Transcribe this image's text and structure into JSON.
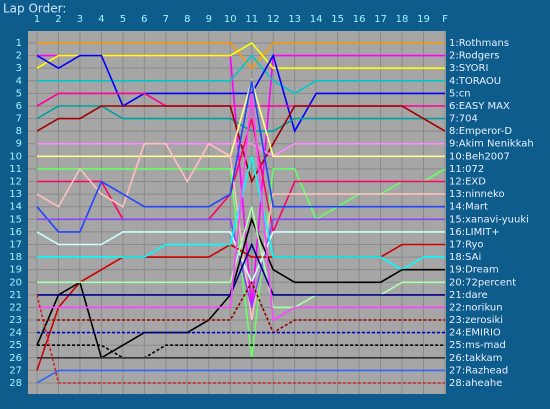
{
  "chart_data": {
    "type": "line",
    "title": "Lap Order:",
    "categories": [
      "1",
      "2",
      "3",
      "4",
      "5",
      "6",
      "7",
      "8",
      "9",
      "10",
      "11",
      "12",
      "13",
      "14",
      "15",
      "16",
      "17",
      "18",
      "19",
      "F"
    ],
    "ylim": [
      28,
      1
    ],
    "yticks": [
      1,
      2,
      3,
      4,
      5,
      6,
      7,
      8,
      9,
      10,
      11,
      12,
      13,
      14,
      15,
      16,
      17,
      18,
      19,
      20,
      21,
      22,
      23,
      24,
      25,
      26,
      27,
      28
    ],
    "grid": true,
    "series": [
      {
        "name": "1:Rothmans",
        "color": "#ff9900",
        "values": [
          1,
          1,
          1,
          1,
          1,
          1,
          1,
          1,
          1,
          1,
          3,
          1,
          1,
          1,
          1,
          1,
          1,
          1,
          1,
          1
        ]
      },
      {
        "name": "2:Rodgers",
        "color": "#ff00ff",
        "values": [
          2,
          2,
          2,
          2,
          2,
          2,
          2,
          2,
          2,
          2,
          22,
          2,
          2,
          2,
          2,
          2,
          2,
          2,
          2,
          2
        ]
      },
      {
        "name": "3:SYORI",
        "color": "#ffff00",
        "values": [
          3,
          2,
          2,
          2,
          2,
          2,
          2,
          2,
          2,
          2,
          1,
          3,
          3,
          3,
          3,
          3,
          3,
          3,
          3,
          3
        ]
      },
      {
        "name": "4:TORAOU",
        "color": "#00c8c8",
        "values": [
          4,
          4,
          4,
          4,
          4,
          4,
          4,
          4,
          4,
          4,
          2,
          4,
          5,
          4,
          4,
          4,
          4,
          4,
          4,
          4
        ]
      },
      {
        "name": "5:cn",
        "color": "#0000ff",
        "values": [
          2,
          3,
          2,
          2,
          6,
          5,
          5,
          5,
          5,
          5,
          5,
          2,
          8,
          5,
          5,
          5,
          5,
          5,
          5,
          5
        ]
      },
      {
        "name": "6:EASY MAX",
        "color": "#ff0099",
        "values": [
          6,
          5,
          5,
          5,
          5,
          5,
          6,
          6,
          6,
          6,
          6,
          6,
          6,
          6,
          6,
          6,
          6,
          6,
          6,
          6
        ]
      },
      {
        "name": "7:704",
        "color": "#00a0a0",
        "values": [
          7,
          6,
          6,
          6,
          7,
          7,
          7,
          7,
          7,
          7,
          8,
          8,
          7,
          7,
          7,
          7,
          7,
          7,
          7,
          7
        ]
      },
      {
        "name": "8:Emperor-D",
        "color": "#a00000",
        "values": [
          8,
          7,
          7,
          6,
          6,
          6,
          6,
          6,
          6,
          6,
          12,
          9,
          6,
          6,
          6,
          6,
          6,
          6,
          7,
          8
        ]
      },
      {
        "name": "9:Akim Nenikkah",
        "color": "#ff88ff",
        "values": [
          9,
          9,
          9,
          9,
          9,
          9,
          9,
          9,
          9,
          9,
          9,
          10,
          9,
          9,
          9,
          9,
          9,
          9,
          9,
          9
        ]
      },
      {
        "name": "10:Beh2007",
        "color": "#ffff88",
        "values": [
          10,
          10,
          10,
          10,
          10,
          10,
          10,
          10,
          10,
          10,
          4,
          10,
          10,
          10,
          10,
          10,
          10,
          10,
          10,
          10
        ]
      },
      {
        "name": "11:072",
        "color": "#66ff66",
        "values": [
          11,
          11,
          11,
          11,
          11,
          11,
          11,
          11,
          11,
          11,
          26,
          11,
          11,
          15,
          14,
          13,
          13,
          12,
          12,
          11
        ]
      },
      {
        "name": "12:EXD",
        "color": "#ff0066",
        "values": [
          12,
          12,
          12,
          12,
          15,
          15,
          15,
          15,
          15,
          13,
          7,
          16,
          12,
          12,
          12,
          12,
          12,
          12,
          12,
          12
        ]
      },
      {
        "name": "13:ninneko",
        "color": "#ffc0c0",
        "values": [
          13,
          14,
          11,
          13,
          14,
          9,
          9,
          12,
          9,
          10,
          23,
          13,
          13,
          13,
          13,
          13,
          13,
          13,
          13,
          13
        ]
      },
      {
        "name": "14:Mart",
        "color": "#2244ff",
        "values": [
          14,
          16,
          16,
          12,
          13,
          14,
          14,
          14,
          14,
          13,
          4,
          14,
          14,
          14,
          14,
          14,
          14,
          14,
          14,
          14
        ]
      },
      {
        "name": "15:xanavi-yuuki",
        "color": "#8844ff",
        "values": [
          15,
          15,
          15,
          15,
          15,
          15,
          15,
          15,
          15,
          15,
          22,
          15,
          15,
          15,
          15,
          15,
          15,
          15,
          15,
          15
        ]
      },
      {
        "name": "16:LIMIT+",
        "color": "#ccffff",
        "values": [
          16,
          17,
          17,
          17,
          16,
          16,
          16,
          16,
          16,
          16,
          20,
          16,
          16,
          16,
          16,
          16,
          16,
          16,
          16,
          16
        ]
      },
      {
        "name": "17:Ryo",
        "color": "#cc0000",
        "values": [
          27,
          22,
          20,
          19,
          18,
          18,
          18,
          18,
          18,
          17,
          18,
          18,
          18,
          18,
          18,
          18,
          18,
          17,
          17,
          17
        ]
      },
      {
        "name": "18:SAi",
        "color": "#00ffff",
        "values": [
          18,
          18,
          18,
          18,
          18,
          18,
          17,
          17,
          17,
          17,
          10,
          18,
          18,
          18,
          18,
          18,
          18,
          19,
          18,
          18
        ]
      },
      {
        "name": "19:Dream",
        "color": "#000000",
        "values": [
          25,
          21,
          20,
          26,
          25,
          24,
          24,
          24,
          23,
          21,
          15,
          19,
          20,
          20,
          20,
          20,
          20,
          19,
          19,
          19
        ]
      },
      {
        "name": "20:72percent",
        "color": "#aaffaa",
        "values": [
          20,
          20,
          20,
          20,
          20,
          20,
          20,
          20,
          20,
          20,
          14,
          22,
          22,
          21,
          21,
          21,
          21,
          20,
          20,
          20
        ]
      },
      {
        "name": "21:dare",
        "color": "#000088",
        "values": [
          21,
          21,
          21,
          21,
          21,
          21,
          21,
          21,
          21,
          21,
          17,
          21,
          21,
          21,
          21,
          21,
          21,
          21,
          21,
          21
        ]
      },
      {
        "name": "22:norikun",
        "color": "#ff44ff",
        "values": [
          22,
          22,
          22,
          22,
          22,
          22,
          22,
          22,
          22,
          22,
          5,
          23,
          22,
          22,
          22,
          22,
          22,
          22,
          22,
          22
        ]
      },
      {
        "name": "23:zerosiki",
        "color": "#990000",
        "dashed": true,
        "values": [
          23,
          23,
          23,
          23,
          23,
          23,
          23,
          23,
          23,
          23,
          20,
          24,
          23,
          23,
          23,
          23,
          23,
          23,
          23,
          23
        ]
      },
      {
        "name": "24:EMIRIO",
        "color": "#0000cc",
        "dashed": true,
        "values": [
          24,
          24,
          24,
          24,
          24,
          24,
          24,
          24,
          24,
          24,
          24,
          24,
          24,
          24,
          24,
          24,
          24,
          24,
          24,
          24
        ]
      },
      {
        "name": "25:ms-mad",
        "color": "#000000",
        "dashed": true,
        "values": [
          25,
          25,
          25,
          25,
          26,
          26,
          25,
          25,
          25,
          25,
          25,
          25,
          25,
          25,
          25,
          25,
          25,
          25,
          25,
          25
        ]
      },
      {
        "name": "26:takkam",
        "color": "#333333",
        "values": [
          26,
          26,
          26,
          26,
          26,
          26,
          26,
          26,
          26,
          26,
          26,
          26,
          26,
          26,
          26,
          26,
          26,
          26,
          26,
          26
        ]
      },
      {
        "name": "27:Razhead",
        "color": "#3366ff",
        "values": [
          28,
          27,
          27,
          27,
          27,
          27,
          27,
          27,
          27,
          27,
          27,
          27,
          27,
          27,
          27,
          27,
          27,
          27,
          27,
          27
        ]
      },
      {
        "name": "28:aheahe",
        "color": "#cc2222",
        "dashed": true,
        "values": [
          21,
          28,
          28,
          28,
          28,
          28,
          28,
          28,
          28,
          28,
          28,
          28,
          28,
          28,
          28,
          28,
          28,
          28,
          28,
          28
        ]
      }
    ]
  }
}
